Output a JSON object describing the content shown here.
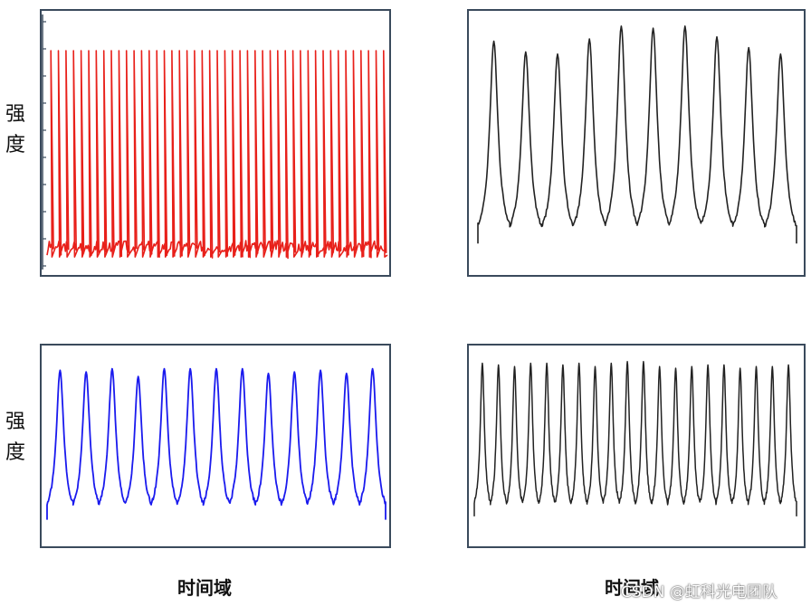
{
  "labels": {
    "y_top": [
      "强",
      "度"
    ],
    "y_bottom": [
      "强",
      "度"
    ],
    "x_left": "时间域",
    "x_right": "时间域"
  },
  "watermark": "CSDN @虹科光电团队",
  "colors": {
    "panel_border": "#3a4a5c",
    "red_trace": "#e8201a",
    "blue_trace": "#1a1aee",
    "black_trace": "#222222"
  },
  "chart_data": [
    {
      "type": "line",
      "series": [
        {
          "pulse_count": 45,
          "peak_level": 1.0,
          "baseline_level": 0.05,
          "color": "#e8201a"
        }
      ],
      "grid": false,
      "axis_ticks_left": 10
    },
    {
      "type": "line",
      "series": [
        {
          "pulse_count": 10,
          "peak_levels": [
            0.96,
            0.91,
            0.9,
            0.97,
            1.03,
            1.02,
            1.03,
            0.98,
            0.93,
            0.9
          ],
          "baseline_level": 0.02,
          "color": "#222222"
        }
      ],
      "grid": false
    },
    {
      "type": "line",
      "series": [
        {
          "pulse_count": 13,
          "peak_levels": [
            0.98,
            0.97,
            0.99,
            0.94,
            0.99,
            0.99,
            0.99,
            0.99,
            0.96,
            0.97,
            0.98,
            0.96,
            0.99
          ],
          "baseline_level": 0.02,
          "color": "#1a1aee"
        }
      ],
      "grid": false
    },
    {
      "type": "line",
      "series": [
        {
          "pulse_count": 20,
          "peak_levels": [
            0.98,
            0.97,
            0.96,
            0.98,
            0.98,
            0.97,
            0.98,
            0.96,
            0.98,
            0.99,
            0.99,
            0.96,
            0.95,
            0.96,
            0.97,
            0.97,
            0.95,
            0.96,
            0.96,
            0.97
          ],
          "baseline_level": 0.05,
          "color": "#222222"
        }
      ],
      "grid": false
    }
  ]
}
